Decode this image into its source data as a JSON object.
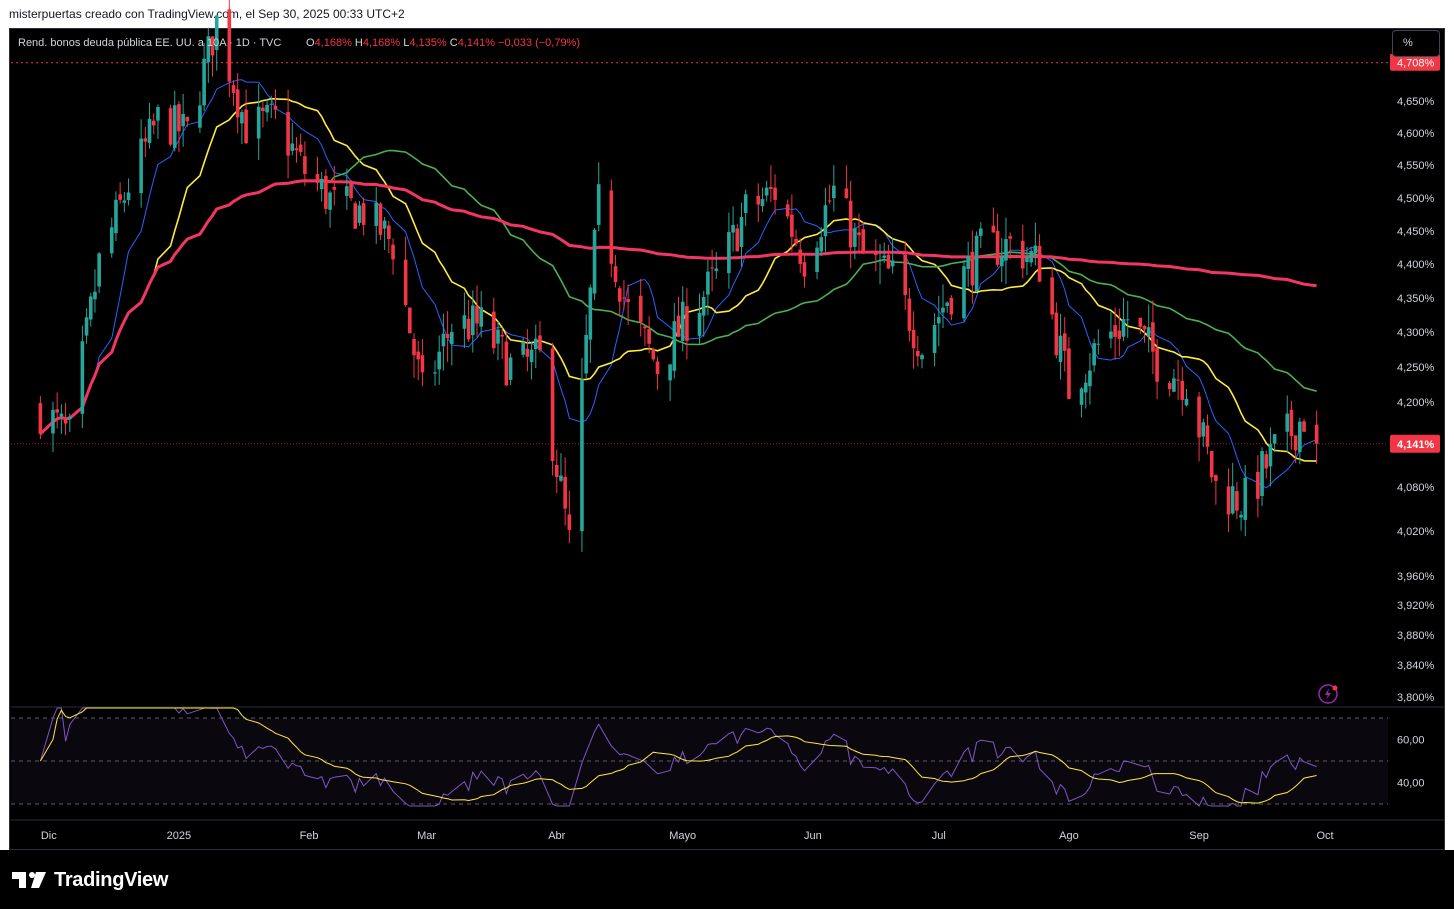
{
  "header": {
    "text": "misterpuertas creado con TradingView.com, el Sep 30, 2025 00:33 UTC+2"
  },
  "legend": {
    "symbol": "Rend. bonos deuda pública EE. UU. a 10A · 1D · TVC",
    "o_label": "O",
    "o_value": "4,168%",
    "h_label": "H",
    "h_value": "4,168%",
    "l_label": "L",
    "l_value": "4,135%",
    "c_label": "C",
    "c_value": "4,141%",
    "change": "−0,033 (−0,79%)"
  },
  "unit_button": "%",
  "branding": {
    "name": "TradingView"
  },
  "colors": {
    "up": "#26a69a",
    "down": "#f23645",
    "ma_fast": "#2962ff",
    "ma_yellow": "#ffeb3b",
    "ma_green": "#4caf50",
    "ma_long": "#f23664",
    "rsi": "#7e57c2",
    "rsi_ma": "#ffeb3b",
    "price_tag": "#f23645"
  },
  "chart_data": {
    "type": "candlestick",
    "y_unit": "%",
    "y_ticks": [
      "4,650%",
      "4,600%",
      "4,550%",
      "4,500%",
      "4,450%",
      "4,400%",
      "4,350%",
      "4,300%",
      "4,250%",
      "4,200%",
      "4,080%",
      "4,020%",
      "3,960%",
      "3,920%",
      "3,880%",
      "3,840%",
      "3,800%"
    ],
    "y_tick_values": [
      4.65,
      4.6,
      4.55,
      4.5,
      4.45,
      4.4,
      4.35,
      4.3,
      4.25,
      4.2,
      4.08,
      4.02,
      3.96,
      3.92,
      3.88,
      3.84,
      3.8
    ],
    "x_ticks": [
      "Dic",
      "2025",
      "Feb",
      "Mar",
      "Abr",
      "Mayo",
      "Jun",
      "Jul",
      "Ago",
      "Sep",
      "Oct"
    ],
    "x_tick_dates": [
      "2024-12-01",
      "2025-01-01",
      "2025-02-01",
      "2025-03-01",
      "2025-04-01",
      "2025-05-01",
      "2025-06-01",
      "2025-07-01",
      "2025-08-01",
      "2025-09-01",
      "2025-10-01"
    ],
    "high_line": {
      "label": "4,708%",
      "value": 4.708
    },
    "last_price": {
      "label": "4,141%",
      "value": 4.141
    },
    "closes": [
      [
        "2024-11-29",
        4.19
      ],
      [
        "2024-12-06",
        4.15
      ],
      [
        "2024-12-13",
        4.4
      ],
      [
        "2024-12-20",
        4.52
      ],
      [
        "2024-12-27",
        4.62
      ],
      [
        "2025-01-03",
        4.6
      ],
      [
        "2025-01-10",
        4.77
      ],
      [
        "2025-01-17",
        4.61
      ],
      [
        "2025-01-24",
        4.62
      ],
      [
        "2025-01-31",
        4.54
      ],
      [
        "2025-02-07",
        4.49
      ],
      [
        "2025-02-14",
        4.48
      ],
      [
        "2025-02-21",
        4.43
      ],
      [
        "2025-02-28",
        4.21
      ],
      [
        "2025-03-07",
        4.31
      ],
      [
        "2025-03-14",
        4.31
      ],
      [
        "2025-03-21",
        4.25
      ],
      [
        "2025-03-28",
        4.26
      ],
      [
        "2025-04-04",
        4.0
      ],
      [
        "2025-04-11",
        4.49
      ],
      [
        "2025-04-18",
        4.33
      ],
      [
        "2025-04-25",
        4.25
      ],
      [
        "2025-05-02",
        4.32
      ],
      [
        "2025-05-09",
        4.38
      ],
      [
        "2025-05-16",
        4.48
      ],
      [
        "2025-05-23",
        4.51
      ],
      [
        "2025-05-30",
        4.41
      ],
      [
        "2025-06-06",
        4.51
      ],
      [
        "2025-06-13",
        4.41
      ],
      [
        "2025-06-20",
        4.38
      ],
      [
        "2025-06-27",
        4.28
      ],
      [
        "2025-07-03",
        4.35
      ],
      [
        "2025-07-11",
        4.42
      ],
      [
        "2025-07-18",
        4.43
      ],
      [
        "2025-07-25",
        4.4
      ],
      [
        "2025-08-01",
        4.22
      ],
      [
        "2025-08-08",
        4.28
      ],
      [
        "2025-08-15",
        4.32
      ],
      [
        "2025-08-22",
        4.26
      ],
      [
        "2025-08-29",
        4.23
      ],
      [
        "2025-09-05",
        4.08
      ],
      [
        "2025-09-12",
        4.06
      ],
      [
        "2025-09-19",
        4.13
      ],
      [
        "2025-09-26",
        4.18
      ],
      [
        "2025-09-29",
        4.141
      ]
    ],
    "moving_averages": [
      {
        "color": "#2962ff"
      },
      {
        "color": "#ffeb3b"
      },
      {
        "color": "#4caf50"
      },
      {
        "color": "#f23664"
      }
    ],
    "rsi": {
      "y_ticks": [
        "60,00",
        "40,00"
      ],
      "y_tick_values": [
        60,
        40
      ],
      "upper_band": 70,
      "lower_band": 30,
      "mid_band": 50
    }
  }
}
